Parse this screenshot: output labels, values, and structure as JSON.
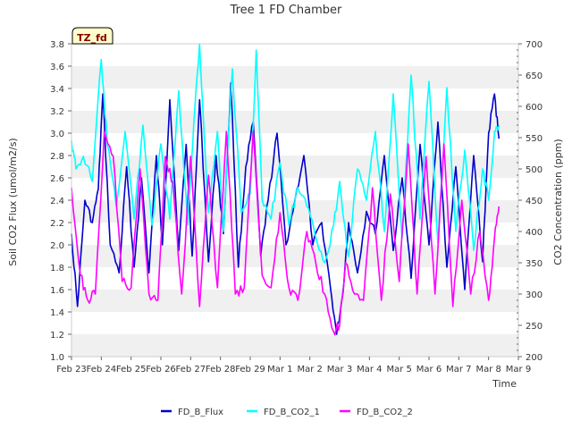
{
  "chart_data": {
    "type": "line",
    "title": "Tree 1 FD Chamber",
    "xlabel": "Time",
    "ylabel": "Soil CO2 Flux (umol/m2/s)",
    "y2label": "CO2 Concentration (ppm)",
    "badge": "TZ_fd",
    "xlim": [
      0,
      15
    ],
    "ylim": [
      1.0,
      3.8
    ],
    "y2lim": [
      200,
      700
    ],
    "x_ticks": [
      {
        "x": 0,
        "label": "Feb 23"
      },
      {
        "x": 1,
        "label": "Feb 24"
      },
      {
        "x": 2,
        "label": "Feb 25"
      },
      {
        "x": 3,
        "label": "Feb 26"
      },
      {
        "x": 4,
        "label": "Feb 27"
      },
      {
        "x": 5,
        "label": "Feb 28"
      },
      {
        "x": 6,
        "label": "Feb 29"
      },
      {
        "x": 7,
        "label": "Mar 1"
      },
      {
        "x": 8,
        "label": "Mar 2"
      },
      {
        "x": 9,
        "label": "Mar 3"
      },
      {
        "x": 10,
        "label": "Mar 4"
      },
      {
        "x": 11,
        "label": "Mar 5"
      },
      {
        "x": 12,
        "label": "Mar 6"
      },
      {
        "x": 13,
        "label": "Mar 7"
      },
      {
        "x": 14,
        "label": "Mar 8"
      },
      {
        "x": 15,
        "label": "Mar 9"
      }
    ],
    "y_ticks": [
      "1.0",
      "1.2",
      "1.4",
      "1.6",
      "1.8",
      "2.0",
      "2.2",
      "2.4",
      "2.6",
      "2.8",
      "3.0",
      "3.2",
      "3.4",
      "3.6",
      "3.8"
    ],
    "y2_ticks": [
      "200",
      "250",
      "300",
      "350",
      "400",
      "450",
      "500",
      "550",
      "600",
      "650",
      "700"
    ],
    "series": [
      {
        "name": "FD_B_Flux",
        "axis": "left",
        "color": "#0000cc",
        "x": [
          0.0,
          0.2,
          0.45,
          0.7,
          0.9,
          1.05,
          1.3,
          1.6,
          1.85,
          2.1,
          2.35,
          2.6,
          2.85,
          3.05,
          3.3,
          3.6,
          3.85,
          4.05,
          4.3,
          4.6,
          4.85,
          5.1,
          5.35,
          5.6,
          5.85,
          6.1,
          6.35,
          6.6,
          6.9,
          7.2,
          7.5,
          7.8,
          8.1,
          8.4,
          8.7,
          8.9,
          9.1,
          9.3,
          9.6,
          9.9,
          10.2,
          10.5,
          10.8,
          11.1,
          11.4,
          11.7,
          12.0,
          12.3,
          12.6,
          12.9,
          13.2,
          13.5,
          13.8,
          14.0,
          14.2,
          14.35
        ],
        "values": [
          2.1,
          1.45,
          2.4,
          2.2,
          2.5,
          3.35,
          2.0,
          1.75,
          2.7,
          1.8,
          2.6,
          1.75,
          2.8,
          2.0,
          3.3,
          1.95,
          2.9,
          1.9,
          3.3,
          1.85,
          2.8,
          2.1,
          3.45,
          1.8,
          2.7,
          3.1,
          1.9,
          2.4,
          3.0,
          2.0,
          2.4,
          2.8,
          2.0,
          2.2,
          1.6,
          1.2,
          1.55,
          2.2,
          1.75,
          2.3,
          2.1,
          2.8,
          1.95,
          2.6,
          1.7,
          2.9,
          2.0,
          3.1,
          1.8,
          2.7,
          1.6,
          2.8,
          1.85,
          3.0,
          3.35,
          2.95
        ]
      },
      {
        "name": "FD_B_CO2_1",
        "axis": "right",
        "color": "#00ffff",
        "x": [
          0.0,
          0.15,
          0.4,
          0.7,
          1.0,
          1.2,
          1.5,
          1.8,
          2.1,
          2.4,
          2.7,
          3.0,
          3.3,
          3.6,
          3.9,
          4.1,
          4.3,
          4.6,
          4.9,
          5.1,
          5.4,
          5.7,
          6.0,
          6.2,
          6.4,
          6.7,
          7.0,
          7.3,
          7.6,
          7.9,
          8.2,
          8.5,
          8.8,
          9.0,
          9.3,
          9.6,
          9.9,
          10.2,
          10.5,
          10.8,
          11.1,
          11.4,
          11.7,
          12.0,
          12.3,
          12.6,
          12.9,
          13.2,
          13.5,
          13.8,
          14.0,
          14.2,
          14.35
        ],
        "values": [
          545,
          500,
          520,
          480,
          675,
          540,
          440,
          560,
          420,
          570,
          410,
          540,
          420,
          625,
          410,
          570,
          700,
          430,
          560,
          400,
          660,
          430,
          460,
          690,
          450,
          420,
          510,
          410,
          470,
          440,
          390,
          350,
          410,
          480,
          360,
          500,
          450,
          560,
          400,
          620,
          390,
          650,
          420,
          640,
          380,
          630,
          400,
          530,
          370,
          500,
          450,
          560,
          570
        ]
      },
      {
        "name": "FD_B_CO2_2",
        "axis": "right",
        "color": "#ff00ff",
        "x": [
          0.0,
          0.3,
          0.55,
          0.8,
          1.1,
          1.4,
          1.7,
          2.0,
          2.3,
          2.6,
          2.9,
          3.15,
          3.4,
          3.7,
          4.0,
          4.3,
          4.6,
          4.9,
          5.2,
          5.5,
          5.8,
          6.1,
          6.4,
          6.7,
          7.0,
          7.3,
          7.6,
          7.9,
          8.2,
          8.5,
          8.8,
          9.0,
          9.2,
          9.5,
          9.8,
          10.1,
          10.4,
          10.7,
          11.0,
          11.3,
          11.6,
          11.9,
          12.2,
          12.5,
          12.8,
          13.1,
          13.4,
          13.7,
          14.0,
          14.2,
          14.35
        ],
        "values": [
          470,
          330,
          290,
          300,
          560,
          520,
          320,
          310,
          500,
          300,
          290,
          520,
          480,
          300,
          520,
          280,
          490,
          310,
          560,
          300,
          310,
          560,
          330,
          310,
          430,
          310,
          290,
          400,
          350,
          300,
          240,
          250,
          350,
          300,
          290,
          470,
          290,
          460,
          320,
          540,
          300,
          520,
          300,
          540,
          280,
          450,
          300,
          400,
          290,
          390,
          440
        ]
      }
    ],
    "legend": [
      "FD_B_Flux",
      "FD_B_CO2_1",
      "FD_B_CO2_2"
    ],
    "legend_position": "bottom-center",
    "grid": "alternating horizontal bands"
  }
}
